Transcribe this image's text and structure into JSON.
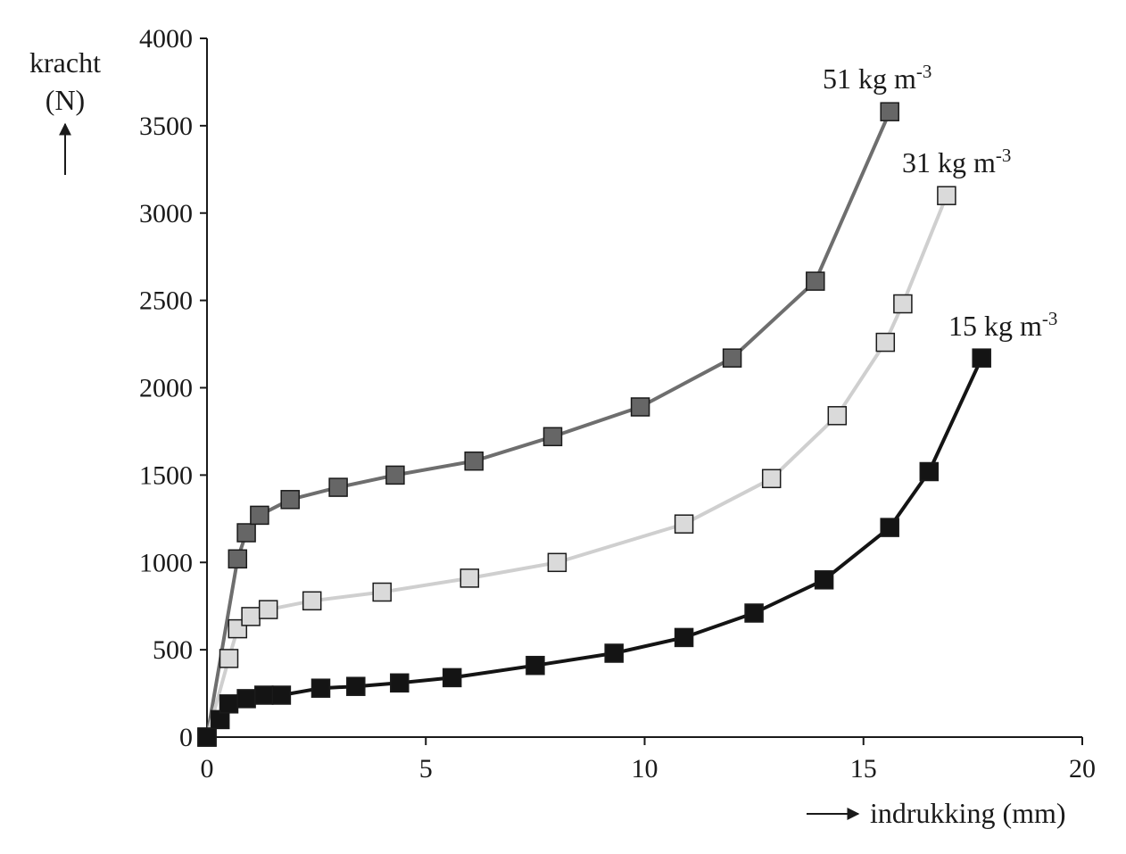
{
  "chart_data": {
    "type": "line",
    "title": "",
    "xlabel": "indrukking (mm)",
    "ylabel": [
      "kracht",
      "(N)"
    ],
    "xlim": [
      0,
      20
    ],
    "ylim": [
      0,
      4000
    ],
    "xticks": [
      0,
      5,
      10,
      15,
      20
    ],
    "yticks": [
      0,
      500,
      1000,
      1500,
      2000,
      2500,
      3000,
      3500,
      4000
    ],
    "grid": false,
    "legend": "none",
    "series": [
      {
        "name": "51 kg m-3",
        "label_text": "51 kg m",
        "label_sup": "-3",
        "line_color": "#6e6e6e",
        "marker_fill": "#666666",
        "points": [
          [
            0,
            0
          ],
          [
            0.7,
            1020
          ],
          [
            0.9,
            1170
          ],
          [
            1.2,
            1270
          ],
          [
            1.9,
            1360
          ],
          [
            3.0,
            1430
          ],
          [
            4.3,
            1500
          ],
          [
            6.1,
            1580
          ],
          [
            7.9,
            1720
          ],
          [
            9.9,
            1890
          ],
          [
            12.0,
            2170
          ],
          [
            13.9,
            2610
          ],
          [
            15.6,
            3580
          ]
        ]
      },
      {
        "name": "31 kg m-3",
        "label_text": "31 kg m",
        "label_sup": "-3",
        "line_color": "#cfcfcf",
        "marker_fill": "#dadada",
        "points": [
          [
            0,
            0
          ],
          [
            0.5,
            450
          ],
          [
            0.7,
            620
          ],
          [
            1.0,
            690
          ],
          [
            1.4,
            730
          ],
          [
            2.4,
            780
          ],
          [
            4.0,
            830
          ],
          [
            6.0,
            910
          ],
          [
            8.0,
            1000
          ],
          [
            10.9,
            1220
          ],
          [
            12.9,
            1480
          ],
          [
            14.4,
            1840
          ],
          [
            15.5,
            2260
          ],
          [
            15.9,
            2480
          ],
          [
            16.9,
            3100
          ]
        ]
      },
      {
        "name": "15 kg m-3",
        "label_text": "15 kg m",
        "label_sup": "-3",
        "line_color": "#141414",
        "marker_fill": "#141414",
        "points": [
          [
            0,
            0
          ],
          [
            0.3,
            100
          ],
          [
            0.5,
            190
          ],
          [
            0.9,
            220
          ],
          [
            1.3,
            240
          ],
          [
            1.7,
            240
          ],
          [
            2.6,
            280
          ],
          [
            3.4,
            290
          ],
          [
            4.4,
            310
          ],
          [
            5.6,
            340
          ],
          [
            7.5,
            410
          ],
          [
            9.3,
            480
          ],
          [
            10.9,
            570
          ],
          [
            12.5,
            710
          ],
          [
            14.1,
            900
          ],
          [
            15.6,
            1200
          ],
          [
            16.5,
            1520
          ],
          [
            17.7,
            2170
          ]
        ]
      }
    ]
  }
}
